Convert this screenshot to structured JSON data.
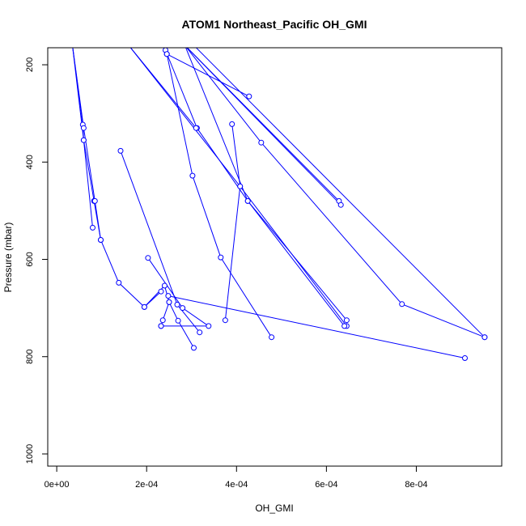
{
  "chart_data": {
    "type": "line",
    "title": "ATOM1 Northeast_Pacific OH_GMI",
    "xlabel": "OH_GMI",
    "ylabel": "Pressure (mbar)",
    "xlim": [
      -2e-05,
      0.00099
    ],
    "ylim": [
      1025,
      165
    ],
    "y_reversed": true,
    "xticks": [
      0,
      0.0002,
      0.0004,
      0.0006,
      0.0008
    ],
    "xtick_labels": [
      "0e+00",
      "2e-04",
      "4e-04",
      "6e-04",
      "8e-04"
    ],
    "yticks": [
      200,
      400,
      600,
      800,
      1000
    ],
    "ytick_labels": [
      "200",
      "400",
      "600",
      "800",
      "1000"
    ],
    "grid": false,
    "series_color": "#0000ff",
    "segments": [
      [
        [
          3.5e-05,
          160
        ],
        [
          5.8e-05,
          323
        ],
        [
          6e-05,
          355
        ],
        [
          8.3e-05,
          480
        ],
        [
          9.8e-05,
          560
        ],
        [
          0.000138,
          648
        ],
        [
          0.000195,
          698
        ],
        [
          0.00024,
          654
        ],
        [
          0.00025,
          688
        ],
        [
          0.00027,
          726
        ],
        [
          0.000305,
          782
        ]
      ],
      [
        [
          3.5e-05,
          160
        ],
        [
          6e-05,
          355
        ],
        [
          8e-05,
          535
        ]
      ],
      [
        [
          3.5e-05,
          160
        ],
        [
          6e-05,
          330
        ],
        [
          8.5e-05,
          480
        ],
        [
          9.8e-05,
          560
        ]
      ],
      [
        [
          0.000142,
          377
        ],
        [
          0.000268,
          693
        ],
        [
          0.000318,
          750
        ]
      ],
      [
        [
          0.000203,
          597
        ],
        [
          0.00028,
          700
        ],
        [
          0.000338,
          737
        ],
        [
          0.000232,
          737
        ]
      ],
      [
        [
          0.000232,
          666
        ],
        [
          0.000195,
          698
        ]
      ],
      [
        [
          0.000232,
          737
        ],
        [
          0.000236,
          725
        ],
        [
          0.00025,
          688
        ]
      ],
      [
        [
          0.000248,
          675
        ],
        [
          0.000908,
          803
        ]
      ],
      [
        [
          0.000245,
          178
        ],
        [
          0.000302,
          428
        ],
        [
          0.000365,
          596
        ],
        [
          0.000478,
          760
        ]
      ],
      [
        [
          0.000245,
          178
        ],
        [
          0.000242,
          170
        ],
        [
          0.000312,
          330
        ],
        [
          0.000425,
          480
        ],
        [
          0.000645,
          725
        ]
      ],
      [
        [
          0.000245,
          178
        ],
        [
          0.000428,
          265
        ]
      ],
      [
        [
          0.00016,
          160
        ],
        [
          0.00031,
          330
        ]
      ],
      [
        [
          0.00016,
          160
        ],
        [
          0.000408,
          450
        ],
        [
          0.000645,
          737
        ]
      ],
      [
        [
          0.000285,
          160
        ],
        [
          0.000455,
          360
        ],
        [
          0.000768,
          692
        ],
        [
          0.000952,
          760
        ]
      ],
      [
        [
          0.000285,
          160
        ],
        [
          0.000425,
          480
        ],
        [
          0.00064,
          737
        ]
      ],
      [
        [
          0.000285,
          160
        ],
        [
          0.000628,
          480
        ]
      ],
      [
        [
          0.000285,
          160
        ],
        [
          0.000632,
          488
        ]
      ],
      [
        [
          0.000305,
          160
        ],
        [
          0.000952,
          760
        ]
      ],
      [
        [
          0.00039,
          322
        ],
        [
          0.000408,
          450
        ],
        [
          0.000375,
          725
        ]
      ]
    ]
  }
}
